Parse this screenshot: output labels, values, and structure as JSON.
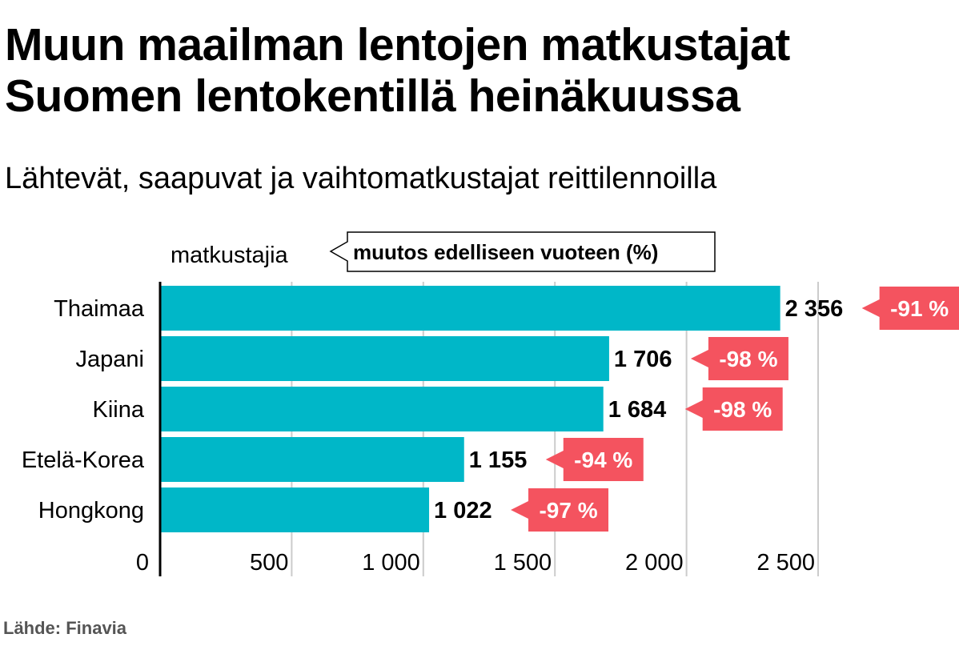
{
  "title_line1": "Muun maailman lentojen matkustajat",
  "title_line2": "Suomen lentokentillä heinäkuussa",
  "subtitle": "Lähtevät, saapuvat ja vaihtomatkustajat reittilennoilla",
  "source": "Lähde: Finavia",
  "colors": {
    "bar": "#00b7c8",
    "change_badge": "#f4535f",
    "grid": "#cccccc",
    "axis": "#000000"
  },
  "chart_data": {
    "type": "bar",
    "orientation": "horizontal",
    "value_label": "matkustajia",
    "change_label": "muutos edelliseen vuoteen (%)",
    "categories": [
      "Thaimaa",
      "Japani",
      "Kiina",
      "Etelä-Korea",
      "Hongkong"
    ],
    "values": [
      2356,
      1706,
      1684,
      1155,
      1022
    ],
    "value_labels": [
      "2 356",
      "1 706",
      "1 684",
      "1 155",
      "1 022"
    ],
    "changes": [
      "-91 %",
      "-98 %",
      "-98 %",
      "-94 %",
      "-97 %"
    ],
    "xlim": [
      0,
      2500
    ],
    "xticks": [
      0,
      500,
      1000,
      1500,
      2000,
      2500
    ],
    "xtick_labels": [
      "0",
      "500",
      "1 000",
      "1 500",
      "2 000",
      "2 500"
    ],
    "grid": true
  }
}
